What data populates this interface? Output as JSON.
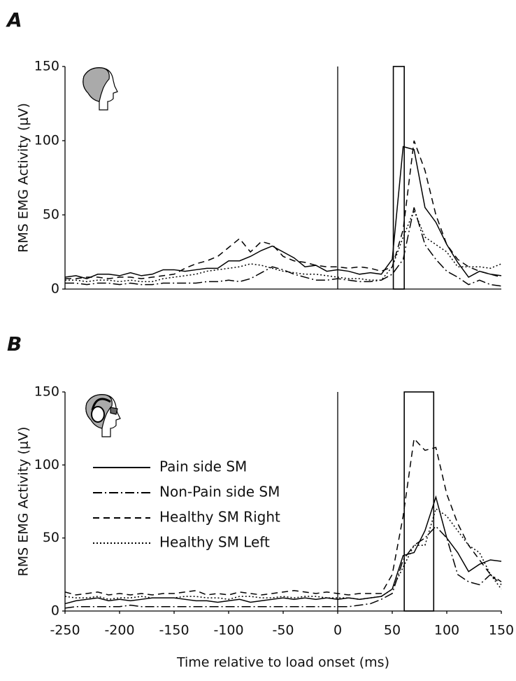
{
  "chart_data": [
    {
      "type": "line",
      "panel_label": "A",
      "y_label": "RMS EMG Activity (μV)",
      "x": [
        -250,
        -240,
        -230,
        -220,
        -210,
        -200,
        -190,
        -180,
        -170,
        -160,
        -150,
        -140,
        -130,
        -120,
        -110,
        -100,
        -90,
        -80,
        -70,
        -60,
        -50,
        -40,
        -30,
        -20,
        -10,
        0,
        10,
        20,
        30,
        40,
        50,
        60,
        70,
        80,
        90,
        100,
        110,
        120,
        130,
        140,
        150
      ],
      "xlim": [
        -250,
        150
      ],
      "ylim": [
        0,
        150
      ],
      "yticks": [
        0,
        50,
        100,
        150
      ],
      "vline_x": 0,
      "highlight_x": [
        51,
        61
      ],
      "series": [
        {
          "color": "#000",
          "dash": "solid",
          "values": [
            8,
            9,
            7,
            10,
            10,
            9,
            11,
            9,
            10,
            13,
            13,
            12,
            13,
            14,
            14,
            19,
            19,
            22,
            26,
            29,
            25,
            21,
            15,
            16,
            12,
            13,
            12,
            10,
            11,
            10,
            20,
            96,
            94,
            55,
            45,
            30,
            18,
            8,
            12,
            10,
            9
          ]
        },
        {
          "color": "#000",
          "dash": "dashdot",
          "values": [
            4,
            4,
            3,
            4,
            4,
            3,
            4,
            3,
            3,
            4,
            4,
            4,
            4,
            5,
            5,
            6,
            5,
            7,
            11,
            15,
            13,
            10,
            8,
            6,
            6,
            7,
            6,
            5,
            5,
            6,
            10,
            20,
            55,
            30,
            20,
            12,
            8,
            3,
            6,
            3,
            2
          ]
        },
        {
          "color": "#000",
          "dash": "dashed",
          "values": [
            7,
            7,
            8,
            8,
            7,
            8,
            8,
            7,
            8,
            9,
            10,
            14,
            17,
            19,
            22,
            28,
            34,
            25,
            32,
            30,
            22,
            19,
            18,
            16,
            15,
            15,
            14,
            15,
            14,
            12,
            15,
            40,
            100,
            80,
            50,
            30,
            20,
            15,
            12,
            10,
            8
          ]
        },
        {
          "color": "#000",
          "dash": "dotted",
          "values": [
            6,
            6,
            5,
            6,
            6,
            5,
            6,
            5,
            5,
            7,
            8,
            9,
            10,
            12,
            13,
            14,
            15,
            17,
            16,
            14,
            12,
            11,
            10,
            10,
            9,
            8,
            7,
            7,
            6,
            6,
            15,
            35,
            53,
            35,
            30,
            25,
            15,
            15,
            15,
            14,
            17
          ]
        }
      ]
    },
    {
      "type": "line",
      "panel_label": "B",
      "y_label": "RMS EMG Activity (μV)",
      "x_label": "Time relative to load onset (ms)",
      "x": [
        -250,
        -240,
        -230,
        -220,
        -210,
        -200,
        -190,
        -180,
        -170,
        -160,
        -150,
        -140,
        -130,
        -120,
        -110,
        -100,
        -90,
        -80,
        -70,
        -60,
        -50,
        -40,
        -30,
        -20,
        -10,
        0,
        10,
        20,
        30,
        40,
        50,
        60,
        70,
        80,
        90,
        100,
        110,
        120,
        130,
        140,
        150
      ],
      "xlim": [
        -250,
        150
      ],
      "xticks": [
        -250,
        -200,
        -150,
        -100,
        -50,
        0,
        50,
        100,
        150
      ],
      "ylim": [
        0,
        150
      ],
      "yticks": [
        0,
        50,
        100,
        150
      ],
      "vline_x": 0,
      "highlight_x": [
        61,
        88
      ],
      "legend": "left",
      "series": [
        {
          "name": "Pain side SM",
          "color": "#000",
          "dash": "solid",
          "values": [
            5,
            7,
            8,
            9,
            7,
            8,
            7,
            8,
            9,
            9,
            9,
            8,
            7,
            7,
            6,
            7,
            8,
            6,
            7,
            8,
            9,
            8,
            9,
            8,
            9,
            8,
            9,
            8,
            9,
            10,
            15,
            38,
            40,
            55,
            78,
            50,
            40,
            27,
            32,
            35,
            34
          ]
        },
        {
          "name": "Non-Pain side SM",
          "color": "#000",
          "dash": "dashdot",
          "values": [
            2,
            3,
            3,
            3,
            3,
            3,
            4,
            3,
            3,
            3,
            3,
            3,
            3,
            3,
            3,
            3,
            3,
            3,
            3,
            3,
            3,
            3,
            3,
            3,
            3,
            3,
            3,
            4,
            5,
            8,
            12,
            35,
            45,
            50,
            58,
            50,
            25,
            20,
            18,
            25,
            20
          ]
        },
        {
          "name": "Healthy SM Right",
          "color": "#000",
          "dash": "dashed",
          "values": [
            13,
            11,
            12,
            13,
            11,
            12,
            11,
            12,
            11,
            12,
            12,
            13,
            14,
            11,
            12,
            11,
            13,
            12,
            11,
            12,
            13,
            14,
            13,
            12,
            13,
            12,
            11,
            12,
            12,
            12,
            25,
            65,
            118,
            110,
            112,
            80,
            60,
            45,
            35,
            25,
            18
          ]
        },
        {
          "name": "Healthy SM Left",
          "color": "#000",
          "dash": "dotted",
          "values": [
            10,
            9,
            9,
            10,
            8,
            9,
            9,
            10,
            9,
            9,
            9,
            10,
            10,
            9,
            9,
            8,
            10,
            10,
            9,
            9,
            10,
            9,
            10,
            10,
            9,
            9,
            9,
            8,
            9,
            10,
            15,
            30,
            45,
            45,
            70,
            65,
            55,
            45,
            40,
            25,
            15
          ]
        }
      ]
    }
  ]
}
